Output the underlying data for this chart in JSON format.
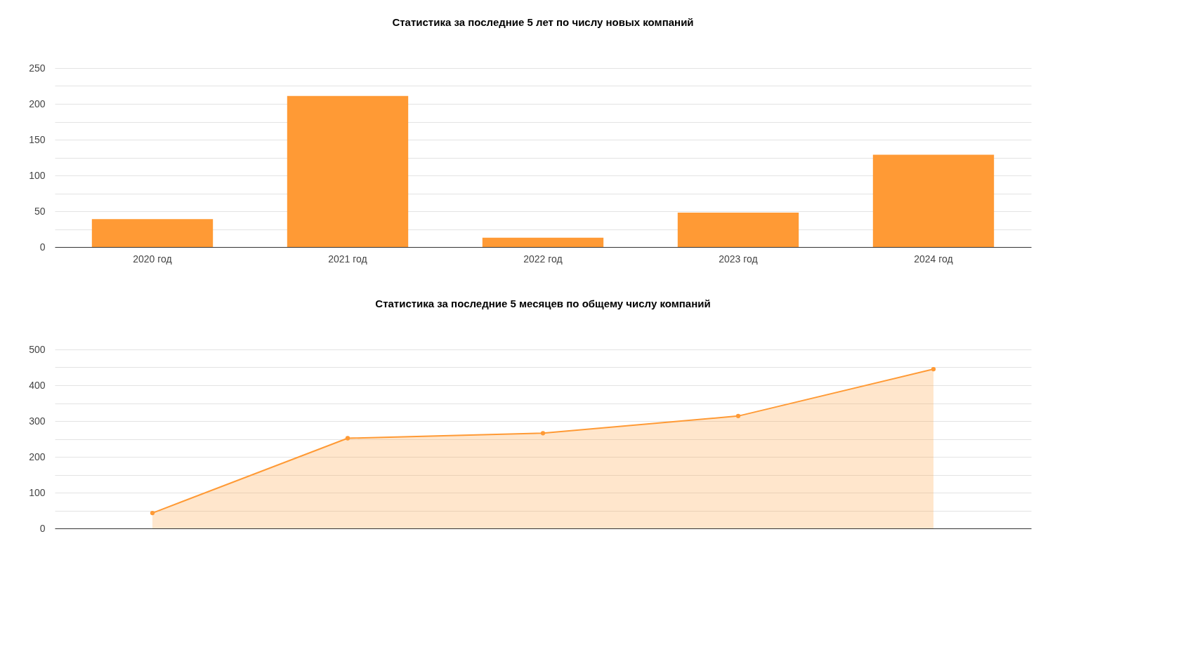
{
  "chart_data": [
    {
      "type": "bar",
      "title": "Статистика за последние 5 лет по числу новых компаний",
      "categories": [
        "2020 год",
        "2021 год",
        "2022 год",
        "2023 год",
        "2024 год"
      ],
      "values": [
        39,
        211,
        13,
        48,
        129
      ],
      "color": "#ff9a35",
      "ylim": [
        0,
        250
      ],
      "yticks": [
        0,
        {
          "value": 25,
          "label": null
        },
        50,
        {
          "value": 75,
          "label": null
        },
        100,
        {
          "value": 125,
          "label": null
        },
        150,
        {
          "value": 175,
          "label": null
        },
        200,
        {
          "value": 225,
          "label": null
        },
        250
      ],
      "grid": "y"
    },
    {
      "type": "area",
      "title": "Статистика за последние 5 месяцев по общему числу компаний",
      "categories": [
        null,
        null,
        null,
        null,
        null
      ],
      "values": [
        43,
        252,
        266,
        314,
        445
      ],
      "color": "#ff9a35",
      "ylim": [
        0,
        500
      ],
      "yticks": [
        0,
        {
          "value": 50,
          "label": null
        },
        100,
        {
          "value": 150,
          "label": null
        },
        200,
        {
          "value": 250,
          "label": null
        },
        300,
        {
          "value": 350,
          "label": null
        },
        400,
        {
          "value": 450,
          "label": null
        },
        500
      ],
      "grid": "y",
      "marker": "circle"
    }
  ]
}
